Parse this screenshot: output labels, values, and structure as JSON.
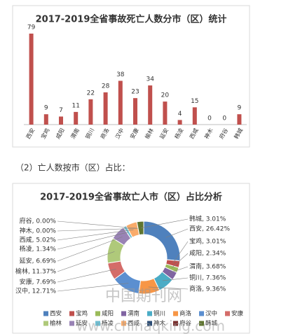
{
  "section_label": "（2）亡人数按市（区）占比：",
  "watermark": [
    "中国期刊网",
    "www.chinaqking.com"
  ],
  "chart_data": [
    {
      "type": "bar",
      "title": "2017-2019全省事故死亡人数分市（区）统计",
      "categories": [
        "西安",
        "宝鸡",
        "咸阳",
        "渭南",
        "铜川",
        "商洛",
        "汉中",
        "安康",
        "榆林",
        "延安",
        "杨凌",
        "西咸",
        "神木",
        "府谷",
        "韩城"
      ],
      "values": [
        79,
        9,
        7,
        11,
        22,
        28,
        38,
        23,
        34,
        20,
        4,
        15,
        0,
        0,
        9
      ],
      "color": "#c0504d",
      "data_labels": true
    },
    {
      "type": "pie",
      "donut": true,
      "title": "2017-2019全省事故亡人市（区）占比分析",
      "categories": [
        "西安",
        "宝鸡",
        "咸阳",
        "渭南",
        "铜川",
        "商洛",
        "汉中",
        "安康",
        "榆林",
        "延安",
        "杨凌",
        "西咸",
        "神木",
        "府谷",
        "韩城"
      ],
      "values": [
        26.42,
        3.01,
        2.34,
        3.68,
        7.36,
        9.36,
        12.71,
        7.69,
        11.37,
        6.69,
        1.34,
        5.02,
        0,
        0,
        3.01
      ],
      "value_labels": [
        "西安, 26.42%",
        "宝鸡, 3.01%",
        "咸阳, 2.34%",
        "渭南, 3.68%",
        "铜川, 7.36%",
        "商洛, 9.36%",
        "汉中, 12.71%",
        "安康, 7.69%",
        "榆林, 11.37%",
        "延安, 6.69%",
        "杨凌, 1.34%",
        "西咸, 5.02%",
        "神木, 0.00%",
        "府谷, 0.00%",
        "韩城, 3.01%"
      ],
      "colors": [
        "#4f81bd",
        "#c0504d",
        "#9bbb59",
        "#8064a2",
        "#4bacc6",
        "#f79646",
        "#5b8fd0",
        "#d46c69",
        "#afc97a",
        "#9983b5",
        "#6fbdd1",
        "#f9ab6b",
        "#2c4d75",
        "#772c2a",
        "#5f7530"
      ],
      "legend": "bottom"
    }
  ]
}
